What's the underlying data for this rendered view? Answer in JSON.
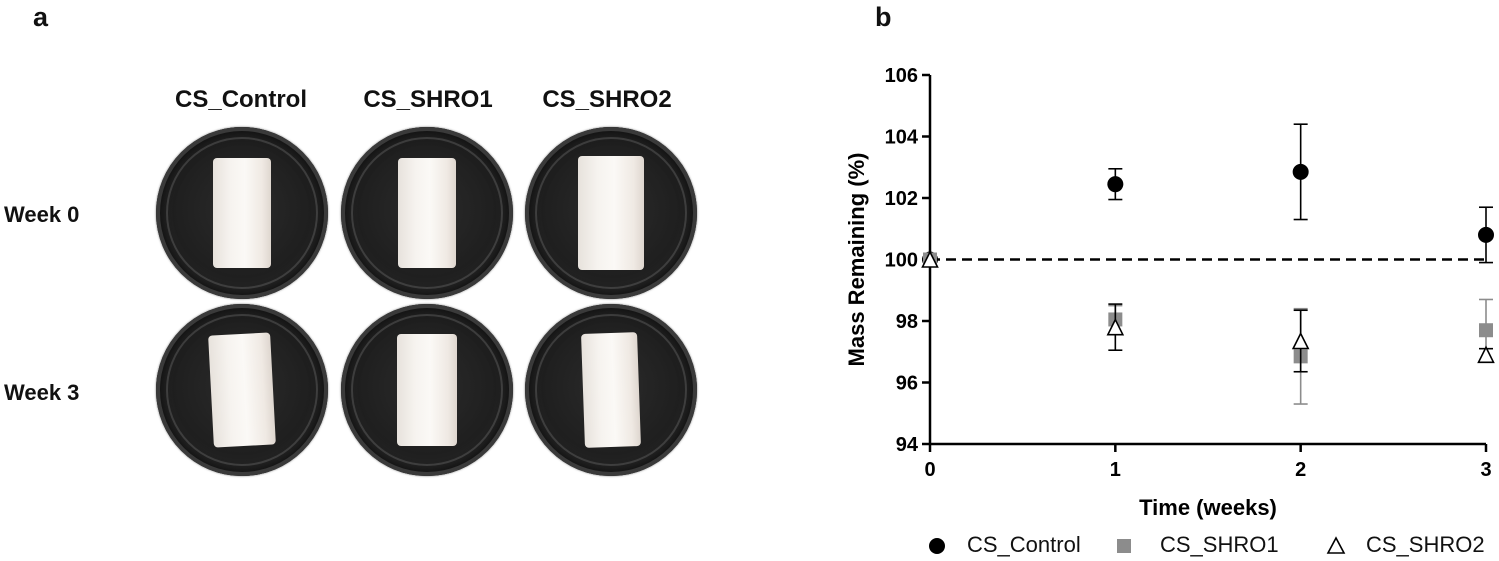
{
  "panel_a": {
    "letter": "a",
    "columns": [
      "CS_Control",
      "CS_SHRO1",
      "CS_SHRO2"
    ],
    "rows": [
      "Week 0",
      "Week 3"
    ]
  },
  "panel_b": {
    "letter": "b"
  },
  "chart_data": {
    "type": "scatter",
    "x": [
      0,
      1,
      2,
      3
    ],
    "xlabel": "Time (weeks)",
    "ylabel": "Mass Remaining (%)",
    "xlim": [
      0,
      3
    ],
    "ylim": [
      94,
      106
    ],
    "xticks": [
      0,
      1,
      2,
      3
    ],
    "yticks": [
      94,
      96,
      98,
      100,
      102,
      104,
      106
    ],
    "reference_line": 100,
    "legend_position": "bottom",
    "grid": false,
    "series": [
      {
        "name": "CS_Control",
        "marker": "circle",
        "color": "#000000",
        "values": [
          100,
          102.45,
          102.85,
          100.8
        ],
        "errors": [
          0,
          0.5,
          1.55,
          0.9
        ]
      },
      {
        "name": "CS_SHRO1",
        "marker": "square",
        "color": "#8c8c8c",
        "values": [
          100,
          98.05,
          96.85,
          97.7
        ],
        "errors": [
          0,
          0.45,
          1.55,
          1.0
        ]
      },
      {
        "name": "CS_SHRO2",
        "marker": "triangle",
        "color": "#000000",
        "values": [
          100,
          97.8,
          97.35,
          96.9
        ],
        "errors": [
          0,
          0.75,
          1.0,
          0.2
        ]
      }
    ]
  }
}
